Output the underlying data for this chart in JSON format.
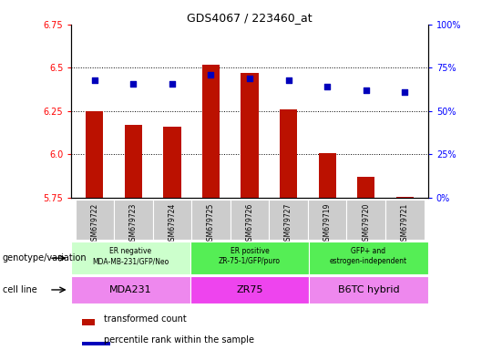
{
  "title": "GDS4067 / 223460_at",
  "samples": [
    "GSM679722",
    "GSM679723",
    "GSM679724",
    "GSM679725",
    "GSM679726",
    "GSM679727",
    "GSM679719",
    "GSM679720",
    "GSM679721"
  ],
  "bar_values": [
    6.25,
    6.17,
    6.16,
    6.52,
    6.47,
    6.26,
    6.01,
    5.87,
    5.755
  ],
  "dot_values": [
    6.43,
    6.41,
    6.41,
    6.46,
    6.44,
    6.43,
    6.39,
    6.37,
    6.36
  ],
  "ylim": [
    5.75,
    6.75
  ],
  "yticks_left": [
    5.75,
    6.0,
    6.25,
    6.5,
    6.75
  ],
  "yticks_right": [
    0,
    25,
    50,
    75,
    100
  ],
  "bar_color": "#bb1100",
  "dot_color": "#0000bb",
  "groups": [
    {
      "label": "ER negative\nMDA-MB-231/GFP/Neo",
      "cell_line": "MDA231",
      "indices": [
        0,
        1,
        2
      ],
      "gen_color": "#ccffcc",
      "cell_color": "#ee88ee"
    },
    {
      "label": "ER positive\nZR-75-1/GFP/puro",
      "cell_line": "ZR75",
      "indices": [
        3,
        4,
        5
      ],
      "gen_color": "#55ee55",
      "cell_color": "#ee44ee"
    },
    {
      "label": "GFP+ and\nestrogen-independent",
      "cell_line": "B6TC hybrid",
      "indices": [
        6,
        7,
        8
      ],
      "gen_color": "#55ee55",
      "cell_color": "#ee88ee"
    }
  ],
  "left_label": "genotype/variation",
  "cell_label": "cell line",
  "legend_bar": "transformed count",
  "legend_dot": "percentile rank within the sample",
  "tick_bg": "#cccccc"
}
